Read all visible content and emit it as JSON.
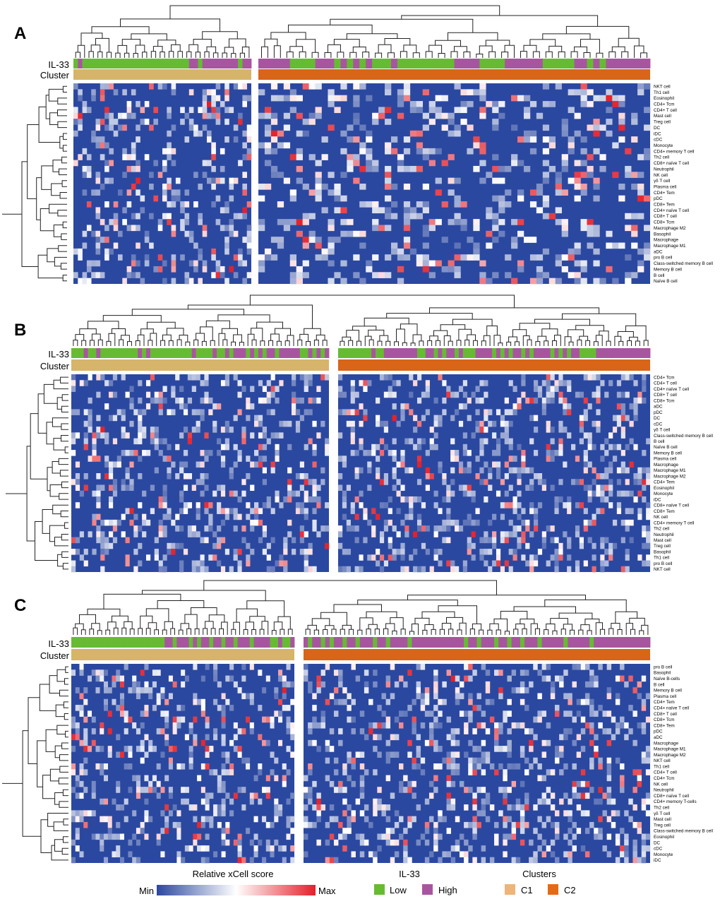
{
  "colors": {
    "min": "#2b48a0",
    "mid": "#ffffff",
    "max": "#e3202a",
    "il33_low": "#66bb33",
    "il33_high": "#a855a0",
    "cluster_c1": "#d6b46a",
    "cluster_c2": "#d86518",
    "legend_c1": "#eeb47a",
    "legend_c2": "#e56a16"
  },
  "chart_data": [
    {
      "type": "heatmap",
      "panel_label": "A",
      "annotation_labels": [
        "IL-33",
        "Cluster"
      ],
      "groups": [
        {
          "cluster": "C1",
          "n_samples": 40,
          "il33": [
            0,
            1,
            0,
            0,
            0,
            0,
            0,
            0,
            0,
            0,
            0,
            0,
            0,
            0,
            0,
            0,
            0,
            0,
            0,
            0,
            0,
            0,
            0,
            0,
            0,
            0,
            1,
            1,
            0,
            1,
            1,
            1,
            1,
            1,
            1,
            1,
            1,
            0,
            1,
            1
          ]
        },
        {
          "cluster": "C2",
          "n_samples": 62,
          "il33": [
            1,
            1,
            1,
            1,
            1,
            0,
            0,
            0,
            0,
            1,
            1,
            1,
            0,
            1,
            0,
            1,
            0,
            1,
            0,
            0,
            0,
            1,
            0,
            0,
            0,
            0,
            0,
            0,
            0,
            0,
            0,
            1,
            1,
            1,
            1,
            0,
            0,
            0,
            0,
            1,
            1,
            1,
            1,
            1,
            1,
            0,
            0,
            0,
            0,
            0,
            1,
            1,
            0,
            1,
            0,
            1,
            1,
            1,
            1,
            1,
            1,
            1
          ]
        }
      ],
      "rows": [
        "NKT cell",
        "Th1 cell",
        "Eosinophil",
        "CD4+ Tcm",
        "CD4+ T cell",
        "Mast cell",
        "Treg cell",
        "DC",
        "iDC",
        "cDC",
        "Monocyte",
        "CD4+ memory T cell",
        "Th2 cell",
        "CD8+ naïve T cell",
        "Neutrophil",
        "NK cell",
        "γδ T cell",
        "Plasma cell",
        "CD4+ Tem",
        "pDC",
        "CD8+ Tem",
        "CD4+ naïve T cell",
        "CD8+ T cell",
        "CD8+ Tcm",
        "Macrophage M2",
        "Basophil",
        "Macrophage",
        "Macrophage M1",
        "aDC",
        "pro B cell",
        "Class-switched memory B cell",
        "Memory B cell",
        "B cell",
        "Naïve B cell"
      ]
    },
    {
      "type": "heatmap",
      "panel_label": "B",
      "annotation_labels": [
        "IL-33",
        "Cluster"
      ],
      "groups": [
        {
          "cluster": "C1",
          "n_samples": 62,
          "il33": [
            0,
            0,
            0,
            1,
            0,
            0,
            1,
            0,
            0,
            0,
            0,
            0,
            0,
            0,
            0,
            0,
            1,
            0,
            1,
            0,
            0,
            0,
            0,
            0,
            0,
            0,
            0,
            0,
            0,
            1,
            0,
            0,
            0,
            0,
            1,
            0,
            0,
            1,
            0,
            1,
            1,
            1,
            0,
            1,
            0,
            1,
            0,
            1,
            1,
            0,
            1,
            1,
            1,
            1,
            1,
            0,
            0,
            1,
            0,
            1,
            0,
            1
          ]
        },
        {
          "cluster": "C2",
          "n_samples": 75,
          "il33": [
            0,
            0,
            0,
            0,
            0,
            0,
            0,
            0,
            1,
            0,
            0,
            1,
            1,
            1,
            1,
            1,
            1,
            1,
            1,
            0,
            0,
            1,
            1,
            0,
            1,
            0,
            1,
            1,
            0,
            1,
            0,
            0,
            0,
            1,
            1,
            1,
            1,
            0,
            1,
            0,
            1,
            0,
            1,
            1,
            0,
            1,
            0,
            1,
            1,
            1,
            1,
            0,
            1,
            0,
            1,
            0,
            1,
            1,
            0,
            0,
            0,
            0,
            1,
            1,
            1,
            1,
            1,
            1,
            1,
            1,
            1,
            1,
            1,
            1,
            1
          ]
        }
      ],
      "rows": [
        "CD4+ Tcm",
        "CD4+ T cell",
        "CD4+ naïve T cell",
        "CD8+ T cell",
        "CD8+ Tcm",
        "aDC",
        "pDC",
        "DC",
        "cDC",
        "γδ T cell",
        "Class-switched memory B cell",
        "B cell",
        "Naïve B cell",
        "Memory B cell",
        "Plasma cell",
        "Macrophage",
        "Macrophage M1",
        "Macrophage M2",
        "CD4+ Tem",
        "Eosinophil",
        "Monocyte",
        "iDC",
        "CD8+ naïve T cell",
        "CD8+ Tem",
        "NK cell",
        "CD4+ memory T cell",
        "Th2 cell",
        "Neutrophil",
        "Mast cell",
        "Treg cell",
        "Basophil",
        "Th1 cell",
        "pro B cell",
        "NKT cell"
      ]
    },
    {
      "type": "heatmap",
      "panel_label": "C",
      "annotation_labels": [
        "IL-33",
        "Cluster"
      ],
      "groups": [
        {
          "cluster": "C1",
          "n_samples": 55,
          "il33": [
            0,
            0,
            0,
            0,
            0,
            0,
            0,
            0,
            0,
            0,
            0,
            0,
            0,
            0,
            0,
            0,
            0,
            0,
            0,
            0,
            0,
            0,
            0,
            1,
            1,
            0,
            1,
            1,
            1,
            0,
            1,
            0,
            1,
            1,
            0,
            1,
            1,
            0,
            1,
            1,
            0,
            1,
            1,
            1,
            0,
            1,
            1,
            1,
            1,
            0,
            0,
            1,
            0,
            0,
            1
          ]
        },
        {
          "cluster": "C2",
          "n_samples": 80,
          "il33": [
            1,
            0,
            1,
            1,
            0,
            1,
            0,
            1,
            1,
            0,
            1,
            1,
            0,
            1,
            1,
            1,
            0,
            1,
            1,
            0,
            1,
            1,
            1,
            1,
            0,
            1,
            1,
            1,
            1,
            1,
            1,
            1,
            1,
            1,
            1,
            1,
            1,
            0,
            1,
            1,
            0,
            1,
            1,
            1,
            0,
            1,
            1,
            0,
            1,
            1,
            0,
            1,
            1,
            1,
            0,
            1,
            1,
            1,
            1,
            1,
            0,
            1,
            1,
            1,
            1,
            1,
            0,
            1,
            1,
            1,
            1,
            1,
            1,
            1,
            1,
            1,
            1,
            1,
            1,
            1
          ]
        }
      ],
      "rows": [
        "pro B cell",
        "Basophil",
        "Naïve B-cells",
        "B cell",
        "Memory B cell",
        "Plasma cell",
        "CD4+ Tem",
        "CD4+ naïve T cell",
        "CD8+ T cell",
        "CD8+ Tcm",
        "CD8+ Tem",
        "pDC",
        "aDC",
        "Macrophage",
        "Macrophage M1",
        "Macrophage M2",
        "NKT cell",
        "Th1 cell",
        "CD4+ T cell",
        "CD4+ Tcm",
        "NK cell",
        "Neutrophil",
        "CD8+ naïve T cell",
        "CD4+ memory T-cells",
        "Th2 cell",
        "γδ T cell",
        "Mast cell",
        "Treg cell",
        "Class-switched memory B cell",
        "Eosinophil",
        "DC",
        "cDC",
        "Monocyte",
        "iDC"
      ]
    }
  ],
  "legend": {
    "score_title": "Relative xCell score",
    "score_min": "Min",
    "score_max": "Max",
    "il33_title": "IL-33",
    "il33_low": "Low",
    "il33_high": "High",
    "clusters_title": "Clusters",
    "c1": "C1",
    "c2": "C2"
  }
}
